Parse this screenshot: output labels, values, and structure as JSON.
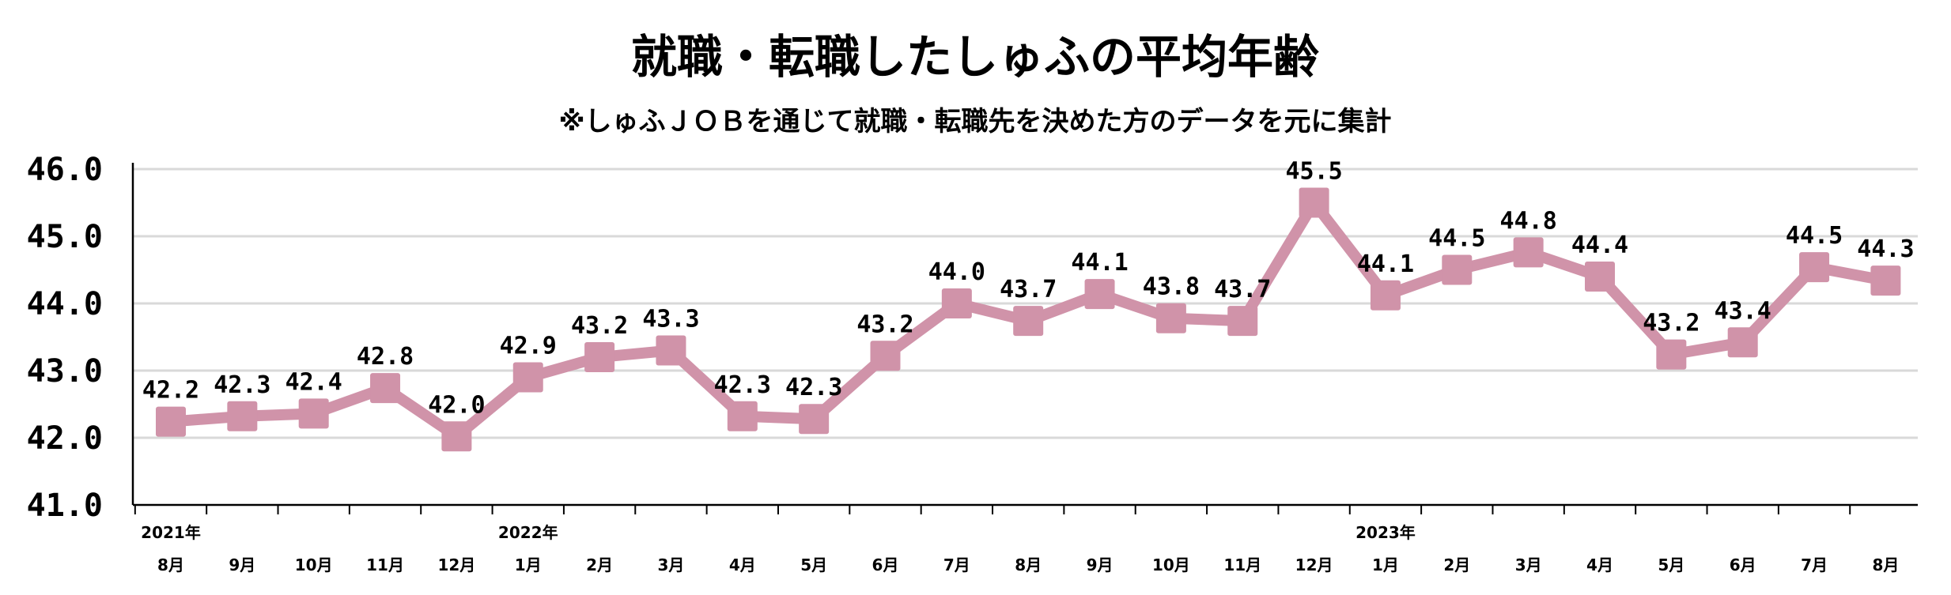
{
  "chart_data": {
    "type": "line",
    "title": "就職・転職したしゅふの平均年齢",
    "subtitle": "※しゅふＪＯＢを通じて就職・転職先を決めた方のデータを元に集計",
    "ylim": [
      41.0,
      46.0
    ],
    "yticks": [
      "41.0",
      "42.0",
      "43.0",
      "44.0",
      "45.0",
      "46.0"
    ],
    "grid": true,
    "categories": [
      "8月",
      "9月",
      "10月",
      "11月",
      "12月",
      "1月",
      "2月",
      "3月",
      "4月",
      "5月",
      "6月",
      "7月",
      "8月",
      "9月",
      "10月",
      "11月",
      "12月",
      "1月",
      "2月",
      "3月",
      "4月",
      "5月",
      "6月",
      "7月",
      "8月"
    ],
    "year_labels": [
      {
        "index": 0,
        "label": "2021年"
      },
      {
        "index": 5,
        "label": "2022年"
      },
      {
        "index": 17,
        "label": "2023年"
      }
    ],
    "values": [
      42.2,
      42.3,
      42.4,
      42.8,
      42.0,
      42.9,
      43.2,
      43.3,
      42.3,
      42.3,
      43.2,
      44.0,
      43.7,
      44.1,
      43.8,
      43.7,
      45.5,
      44.1,
      44.5,
      44.8,
      44.4,
      43.2,
      43.4,
      44.5,
      44.3
    ],
    "plot_values": [
      42.24,
      42.32,
      42.36,
      42.74,
      42.02,
      42.9,
      43.2,
      43.3,
      42.32,
      42.28,
      43.22,
      44.0,
      43.74,
      44.14,
      43.78,
      43.74,
      45.5,
      44.12,
      44.5,
      44.76,
      44.4,
      43.24,
      43.42,
      44.54,
      44.34
    ],
    "series_color": "#d093a9"
  }
}
